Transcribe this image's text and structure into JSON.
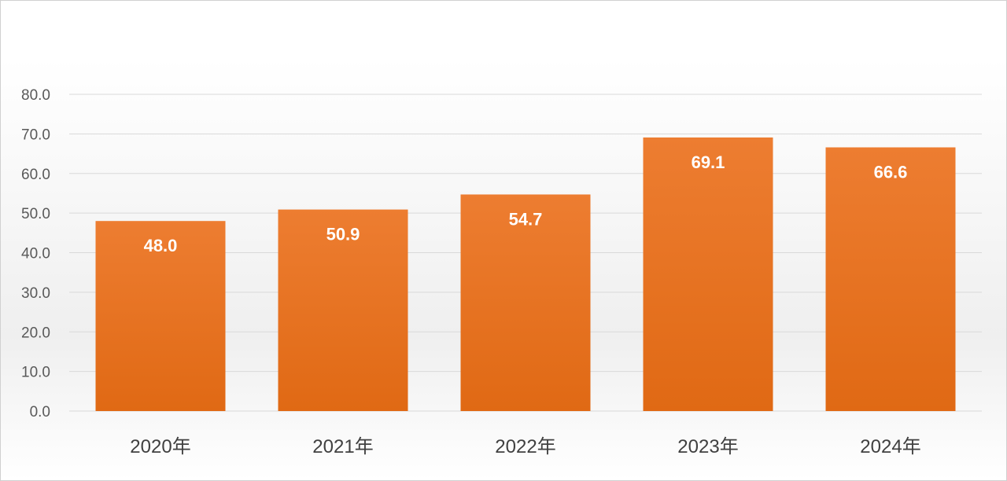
{
  "chart_data": {
    "type": "bar",
    "title": "",
    "xlabel": "",
    "ylabel": "",
    "categories": [
      "2020年",
      "2021年",
      "2022年",
      "2023年",
      "2024年"
    ],
    "values": [
      48.0,
      50.9,
      54.7,
      69.1,
      66.6
    ],
    "data_labels": [
      "48.0",
      "50.9",
      "54.7",
      "69.1",
      "66.6"
    ],
    "ylim": [
      0,
      80
    ],
    "yticks": [
      "0.0",
      "10.0",
      "20.0",
      "30.0",
      "40.0",
      "50.0",
      "60.0",
      "70.0",
      "80.0"
    ],
    "grid": true,
    "legend": "none",
    "colors": {
      "bar_top": "#ED7D31",
      "bar_bottom": "#E06914",
      "grid": "#d9d9d9",
      "axis": "#d9d9d9"
    }
  }
}
